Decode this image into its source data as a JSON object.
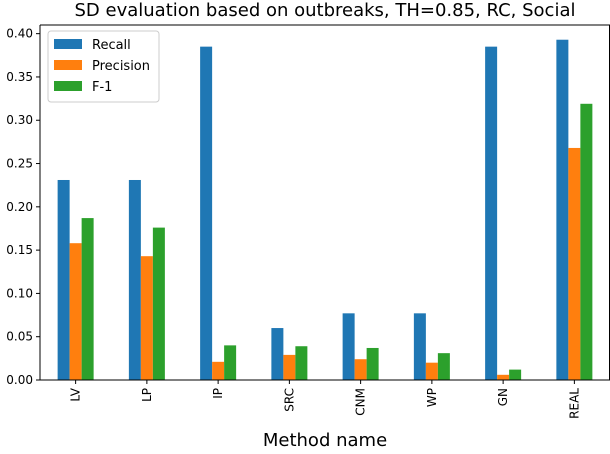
{
  "chart_data": {
    "type": "bar",
    "title": "SD evaluation based on outbreaks, TH=0.85, RC, Social",
    "xlabel": "Method name",
    "ylabel": "",
    "categories": [
      "LV",
      "LP",
      "IP",
      "SRC",
      "CNM",
      "WP",
      "GN",
      "REAL"
    ],
    "ylim": [
      0,
      0.41
    ],
    "yticks": [
      "0.00",
      "0.05",
      "0.10",
      "0.15",
      "0.20",
      "0.25",
      "0.30",
      "0.35",
      "0.40"
    ],
    "legend_position": "top-left",
    "grid": false,
    "series": [
      {
        "name": "Recall",
        "color": "#1f77b4",
        "values": [
          0.231,
          0.231,
          0.385,
          0.06,
          0.077,
          0.077,
          0.385,
          0.393
        ]
      },
      {
        "name": "Precision",
        "color": "#ff7f0e",
        "values": [
          0.158,
          0.143,
          0.021,
          0.029,
          0.024,
          0.02,
          0.006,
          0.268
        ]
      },
      {
        "name": "F-1",
        "color": "#2ca02c",
        "values": [
          0.187,
          0.176,
          0.04,
          0.039,
          0.037,
          0.031,
          0.012,
          0.319
        ]
      }
    ]
  }
}
